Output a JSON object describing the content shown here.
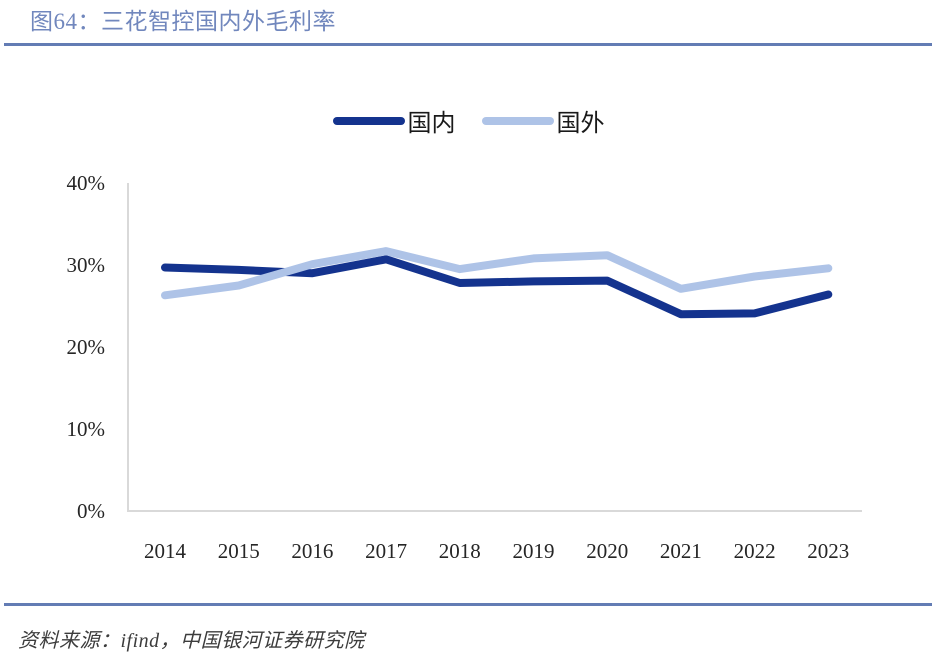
{
  "header": {
    "title": "图64：三花智控国内外毛利率"
  },
  "footer": {
    "source": "资料来源：ifind，中国银河证券研究院"
  },
  "colors": {
    "title_blue": "#7187BD",
    "divider_blue": "#637CB4",
    "axis_gray": "#D9D9D9",
    "tick_text": "#262626"
  },
  "chart_data": {
    "type": "line",
    "title": "图64：三花智控国内外毛利率",
    "categories": [
      "2014",
      "2015",
      "2016",
      "2017",
      "2018",
      "2019",
      "2020",
      "2021",
      "2022",
      "2023"
    ],
    "series": [
      {
        "name": "国内",
        "color": "#14338E",
        "values": [
          29.7,
          29.4,
          29.0,
          30.7,
          27.8,
          28.0,
          28.1,
          24.0,
          24.1,
          26.4
        ]
      },
      {
        "name": "国外",
        "color": "#AEC3E7",
        "values": [
          26.3,
          27.5,
          30.1,
          31.7,
          29.5,
          30.8,
          31.2,
          27.1,
          28.6,
          29.6
        ]
      }
    ],
    "xlabel": "",
    "ylabel": "",
    "ylim": [
      0,
      40
    ],
    "ytick_values": [
      0,
      10,
      20,
      30,
      40
    ],
    "ytick_labels": [
      "0%",
      "10%",
      "20%",
      "30%",
      "40%"
    ],
    "grid": false,
    "legend_position": "top-center"
  }
}
